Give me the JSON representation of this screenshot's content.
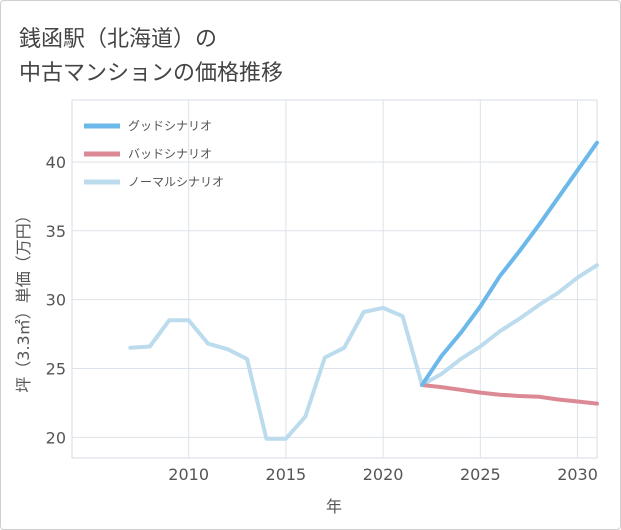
{
  "title_line1": "銭函駅（北海道）の",
  "title_line2": "中古マンションの価格推移",
  "chart_data": {
    "type": "line",
    "xlabel": "年",
    "ylabel": "坪（3.3㎡）単価（万円）",
    "xlim": [
      2004,
      2031
    ],
    "ylim": [
      18.5,
      44.5
    ],
    "xticks": [
      2010,
      2015,
      2020,
      2025,
      2030
    ],
    "yticks": [
      20,
      25,
      30,
      35,
      40
    ],
    "grid": true,
    "legend_position": "top-left",
    "series": [
      {
        "name": "グッドシナリオ",
        "color": "#6cb8ea",
        "x": [
          2022,
          2023,
          2024,
          2025,
          2026,
          2027,
          2028,
          2029,
          2030,
          2031
        ],
        "y": [
          23.8,
          25.9,
          27.6,
          29.5,
          31.7,
          33.5,
          35.4,
          37.4,
          39.4,
          41.4
        ]
      },
      {
        "name": "バッドシナリオ",
        "color": "#db8a95",
        "x": [
          2022,
          2023,
          2024,
          2025,
          2026,
          2027,
          2028,
          2029,
          2030,
          2031
        ],
        "y": [
          23.8,
          23.65,
          23.45,
          23.25,
          23.1,
          23.0,
          22.95,
          22.75,
          22.6,
          22.45
        ]
      },
      {
        "name": "ノーマルシナリオ",
        "color": "#bcdcee",
        "x": [
          2007,
          2008,
          2009,
          2010,
          2011,
          2012,
          2013,
          2014,
          2015,
          2016,
          2017,
          2018,
          2019,
          2020,
          2021,
          2022,
          2023,
          2024,
          2025,
          2026,
          2027,
          2028,
          2029,
          2030,
          2031
        ],
        "y": [
          26.5,
          26.6,
          28.5,
          28.5,
          26.8,
          26.4,
          25.7,
          19.9,
          19.9,
          21.5,
          25.8,
          26.5,
          29.1,
          29.4,
          28.8,
          23.8,
          24.6,
          25.7,
          26.6,
          27.7,
          28.6,
          29.6,
          30.5,
          31.6,
          32.5
        ]
      }
    ]
  }
}
